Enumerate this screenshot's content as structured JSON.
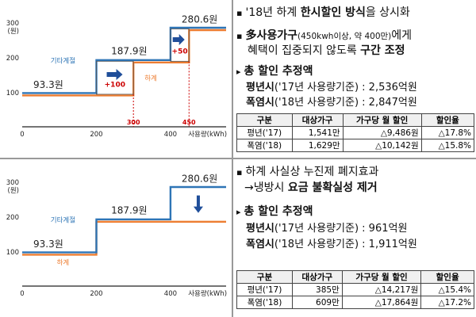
{
  "chart_data": [
    {
      "type": "line",
      "step": true,
      "xlabel": "사용량(kWh)",
      "ylabel": "(원)",
      "xlim": [
        0,
        550
      ],
      "ylim": [
        0,
        300
      ],
      "x_ticks": [
        "0",
        "200",
        "400"
      ],
      "y_ticks": [
        "100",
        "200",
        "300"
      ],
      "series": [
        {
          "name": "기타계절",
          "color": "#2e75b6",
          "points": [
            [
              0,
              93.3
            ],
            [
              200,
              93.3
            ],
            [
              200,
              187.9
            ],
            [
              400,
              187.9
            ],
            [
              400,
              280.6
            ],
            [
              550,
              280.6
            ]
          ]
        },
        {
          "name": "하계",
          "color": "#ed7d31",
          "points": [
            [
              0,
              93.3
            ],
            [
              300,
              93.3
            ],
            [
              300,
              187.9
            ],
            [
              450,
              187.9
            ],
            [
              450,
              280.6
            ],
            [
              550,
              280.6
            ]
          ]
        }
      ],
      "value_labels": [
        "93.3원",
        "187.9원",
        "280.6원"
      ],
      "annotations": {
        "plus100": "+100",
        "plus50": "+50",
        "x300": "300",
        "x450": "450"
      },
      "arrow_direction": "right"
    },
    {
      "type": "line",
      "step": true,
      "xlabel": "사용량(kWh)",
      "ylabel": "(원)",
      "xlim": [
        0,
        550
      ],
      "ylim": [
        0,
        300
      ],
      "x_ticks": [
        "0",
        "200",
        "400"
      ],
      "y_ticks": [
        "100",
        "200",
        "300"
      ],
      "series": [
        {
          "name": "기타계절",
          "color": "#2e75b6",
          "points": [
            [
              0,
              93.3
            ],
            [
              200,
              93.3
            ],
            [
              200,
              187.9
            ],
            [
              400,
              187.9
            ],
            [
              400,
              280.6
            ],
            [
              550,
              280.6
            ]
          ]
        },
        {
          "name": "하계",
          "color": "#ed7d31",
          "points": [
            [
              0,
              93.3
            ],
            [
              200,
              93.3
            ],
            [
              200,
              187.9
            ],
            [
              550,
              187.9
            ]
          ]
        }
      ],
      "value_labels": [
        "93.3원",
        "187.9원",
        "280.6원"
      ],
      "arrow_direction": "down"
    }
  ],
  "panel1": {
    "line1_pre": "'18년 하계 ",
    "line1_bold": "한시할인 방식",
    "line1_post": "을 상시화",
    "line2_bold": "多사용가구",
    "line2_small": "(450kwh이상, 약 400만)",
    "line2_post": "에게",
    "line3_pre": "혜택이 집중되지 않도록 ",
    "line3_bold": "구간 조정",
    "line4": "총 할인 추정액",
    "line5_a": "평년시",
    "line5_b": "('17년 사용량기준) : 2,536억원",
    "line6_a": "폭염시",
    "line6_b": "('18년 사용량기준) : 2,847억원",
    "table": {
      "headers": [
        "구분",
        "대상가구",
        "가구당 월 할인",
        "할인율"
      ],
      "rows": [
        [
          "평년('17)",
          "1,541만",
          "△9,486원",
          "△17.8%"
        ],
        [
          "폭염('18)",
          "1,629만",
          "△10,142원",
          "△15.8%"
        ]
      ]
    }
  },
  "panel2": {
    "line1": "하계 사실상 누진제 폐지효과",
    "line2_pre": "→냉방시 ",
    "line2_bold": "요금 불확실성 제거",
    "line3": "총 할인 추정액",
    "line4_a": "평년시",
    "line4_b": "('17년 사용량기준) : 961억원",
    "line5_a": "폭염시",
    "line5_b": "('18년 사용량기준) : 1,911억원",
    "table": {
      "headers": [
        "구분",
        "대상가구",
        "가구당 월 할인",
        "할인율"
      ],
      "rows": [
        [
          "평년('17)",
          "385만",
          "△14,217원",
          "△15.4%"
        ],
        [
          "폭염('18)",
          "609만",
          "△17,864원",
          "△17.2%"
        ]
      ]
    }
  },
  "glyphs": {
    "triangle": "▸",
    "square": "▪"
  }
}
